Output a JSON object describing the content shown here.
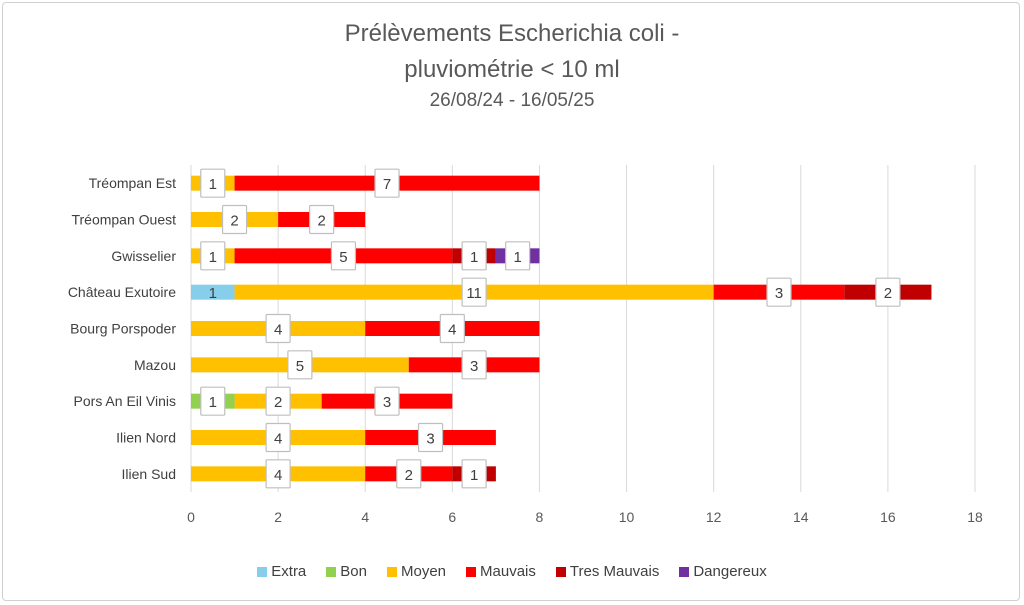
{
  "chart_data": {
    "type": "bar",
    "orientation": "horizontal",
    "stacked": true,
    "title": "Prélèvements Escherichia coli -",
    "title_line2": "pluviométrie < 10 ml",
    "subtitle": "26/08/24 - 16/05/25",
    "categories": [
      "Tréompan Est",
      "Tréompan Ouest",
      "Gwisselier",
      "Château Exutoire",
      "Bourg Porspoder",
      "Mazou",
      "Pors An Eil Vinis",
      "Ilien Nord",
      "Ilien Sud"
    ],
    "series": [
      {
        "name": "Extra",
        "color": "#87CEEB",
        "values": [
          0,
          0,
          0,
          1,
          0,
          0,
          0,
          0,
          0
        ]
      },
      {
        "name": "Bon",
        "color": "#92D050",
        "values": [
          0,
          0,
          0,
          0,
          0,
          0,
          1,
          0,
          0
        ]
      },
      {
        "name": "Moyen",
        "color": "#FFC000",
        "values": [
          1,
          2,
          1,
          11,
          4,
          5,
          2,
          4,
          4
        ]
      },
      {
        "name": "Mauvais",
        "color": "#FF0000",
        "values": [
          7,
          2,
          5,
          3,
          4,
          3,
          3,
          3,
          2
        ]
      },
      {
        "name": "Tres Mauvais",
        "color": "#C00000",
        "values": [
          0,
          0,
          1,
          2,
          0,
          0,
          0,
          0,
          1
        ]
      },
      {
        "name": "Dangereux",
        "color": "#7030A0",
        "values": [
          0,
          0,
          1,
          0,
          0,
          0,
          0,
          0,
          0
        ]
      }
    ],
    "xlim": [
      0,
      18
    ],
    "xticks": [
      "0",
      "2",
      "4",
      "6",
      "8",
      "10",
      "12",
      "14",
      "16",
      "18"
    ],
    "grid": true,
    "legend_position": "bottom"
  }
}
